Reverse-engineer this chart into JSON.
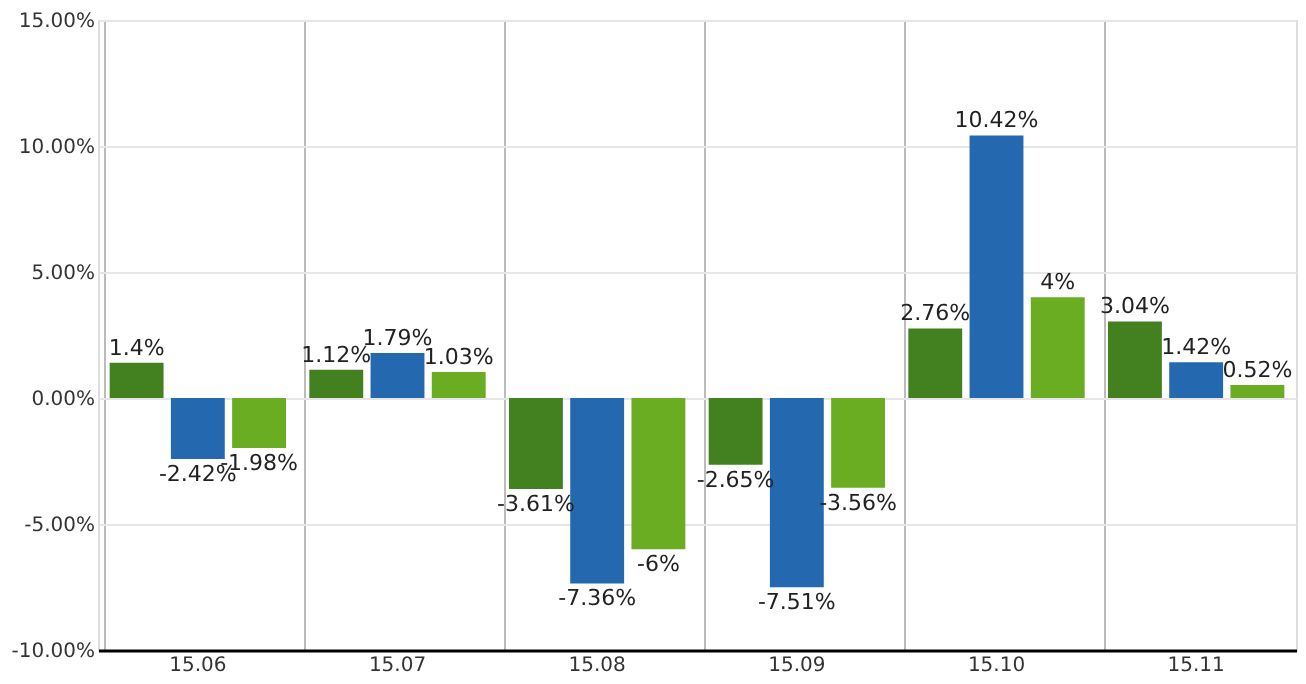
{
  "chart_data": {
    "type": "bar",
    "categories": [
      "15.06",
      "15.07",
      "15.08",
      "15.09",
      "15.10",
      "15.11"
    ],
    "series": [
      {
        "color": "#43801f",
        "values": [
          1.4,
          1.12,
          -3.61,
          -2.65,
          2.76,
          3.04
        ],
        "value_labels": [
          "1.4%",
          "1.12%",
          "-3.61%",
          "-2.65%",
          "2.76%",
          "3.04%"
        ]
      },
      {
        "color": "#2468b0",
        "values": [
          -2.42,
          1.79,
          -7.36,
          -7.51,
          10.42,
          1.42
        ],
        "value_labels": [
          "-2.42%",
          "1.79%",
          "-7.36%",
          "-7.51%",
          "10.42%",
          "1.42%"
        ]
      },
      {
        "color": "#6aad22",
        "values": [
          -1.98,
          1.03,
          -6,
          -3.56,
          4,
          0.52
        ],
        "value_labels": [
          "-1.98%",
          "1.03%",
          "-6%",
          "-3.56%",
          "4%",
          "0.52%"
        ]
      }
    ],
    "ylim": [
      -10,
      15
    ],
    "yticks": [
      {
        "value": -10,
        "label": "-10.00%"
      },
      {
        "value": -5,
        "label": "-5.00%"
      },
      {
        "value": 0,
        "label": "0.00%"
      },
      {
        "value": 5,
        "label": "5.00%"
      },
      {
        "value": 10,
        "label": "10.00%"
      },
      {
        "value": 15,
        "label": "15.00%"
      }
    ],
    "grid": true,
    "legend": false
  }
}
